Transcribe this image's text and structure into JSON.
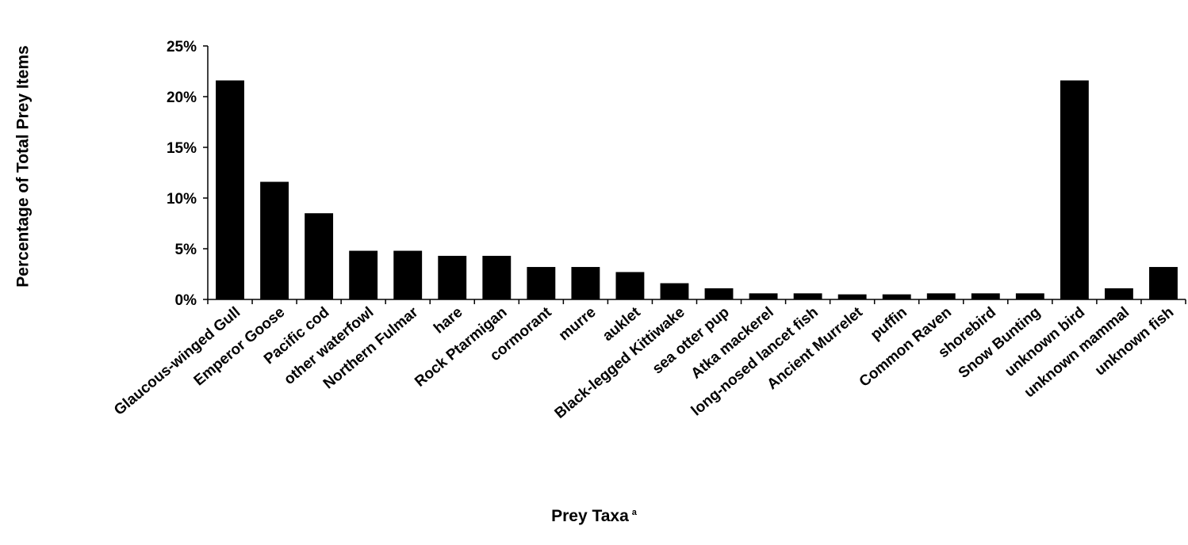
{
  "chart_data": {
    "type": "bar",
    "xlabel": "Prey Taxa",
    "xlabel_sup": "a",
    "ylabel": "Percentage of Total Prey Items",
    "ylim": [
      0,
      25
    ],
    "yticks": [
      "0%",
      "5%",
      "10%",
      "15%",
      "20%",
      "25%"
    ],
    "ytick_values": [
      0,
      5,
      10,
      15,
      20,
      25
    ],
    "grid": false,
    "bar_color": "#000000",
    "categories": [
      "Glaucous-winged Gull",
      "Emperor Goose",
      "Pacific cod",
      "other waterfowl",
      "Northern Fulmar",
      "hare",
      "Rock Ptarmigan",
      "cormorant",
      "murre",
      "auklet",
      "Black-legged Kittiwake",
      "sea otter pup",
      "Atka mackerel",
      "long-nosed lancet fish",
      "Ancient Murrelet",
      "puffin",
      "Common Raven",
      "shorebird",
      "Snow Bunting",
      "unknown bird",
      "unknown mammal",
      "unknown fish"
    ],
    "values": [
      21.6,
      11.6,
      8.5,
      4.8,
      4.8,
      4.3,
      4.3,
      3.2,
      3.2,
      2.7,
      1.6,
      1.1,
      0.6,
      0.6,
      0.5,
      0.5,
      0.6,
      0.6,
      0.6,
      21.6,
      1.1,
      3.2
    ]
  }
}
